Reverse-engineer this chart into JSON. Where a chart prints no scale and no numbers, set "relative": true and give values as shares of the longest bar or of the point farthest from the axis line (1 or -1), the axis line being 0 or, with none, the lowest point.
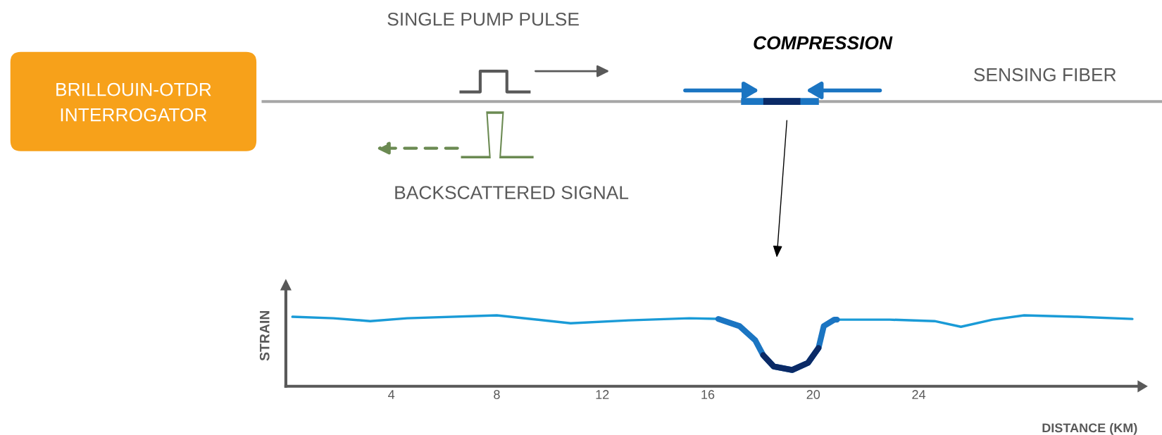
{
  "chart_data": {
    "type": "line",
    "relative": true,
    "xlabel": "DISTANCE (KM)",
    "ylabel": "STRAIN",
    "xlim": [
      0,
      32.3
    ],
    "xticks": [
      4,
      8,
      12,
      16,
      20,
      24
    ],
    "tick_labels": "x",
    "series": [
      {
        "color": "#1a9bd7",
        "x": [
          0.25,
          1.8,
          3.2,
          4.6,
          8.0,
          10.8,
          13.0,
          15.3,
          16.4,
          17.2,
          17.8,
          18.1,
          18.5,
          19.2,
          19.8,
          20.2,
          20.4,
          20.8,
          22.9,
          24.6,
          25.6,
          26.8,
          28.0,
          30.0,
          32.1
        ],
        "values": [
          0.98,
          0.96,
          0.92,
          0.96,
          1.0,
          0.89,
          0.93,
          0.96,
          0.95,
          0.85,
          0.65,
          0.44,
          0.28,
          0.23,
          0.33,
          0.54,
          0.85,
          0.94,
          0.94,
          0.92,
          0.84,
          0.94,
          1.0,
          0.98,
          0.95
        ]
      },
      {
        "color": "#1b75c2",
        "x": [
          16.4,
          17.2,
          17.8,
          18.1,
          18.5,
          19.2,
          19.8,
          20.2,
          20.4,
          20.8,
          20.9
        ],
        "values": [
          0.95,
          0.85,
          0.65,
          0.44,
          0.28,
          0.23,
          0.33,
          0.54,
          0.85,
          0.94,
          0.94
        ]
      },
      {
        "color": "#0b2a66",
        "x": [
          18.1,
          18.5,
          19.2,
          19.8,
          20.2
        ],
        "values": [
          0.44,
          0.28,
          0.23,
          0.33,
          0.54
        ]
      }
    ],
    "annotations": [
      "SINGLE PUMP PULSE",
      "COMPRESSION",
      "SENSING FIBER",
      "BACKSCATTERED SIGNAL",
      "BRILLOUIN-OTDR\nINTERROGATOR"
    ]
  }
}
